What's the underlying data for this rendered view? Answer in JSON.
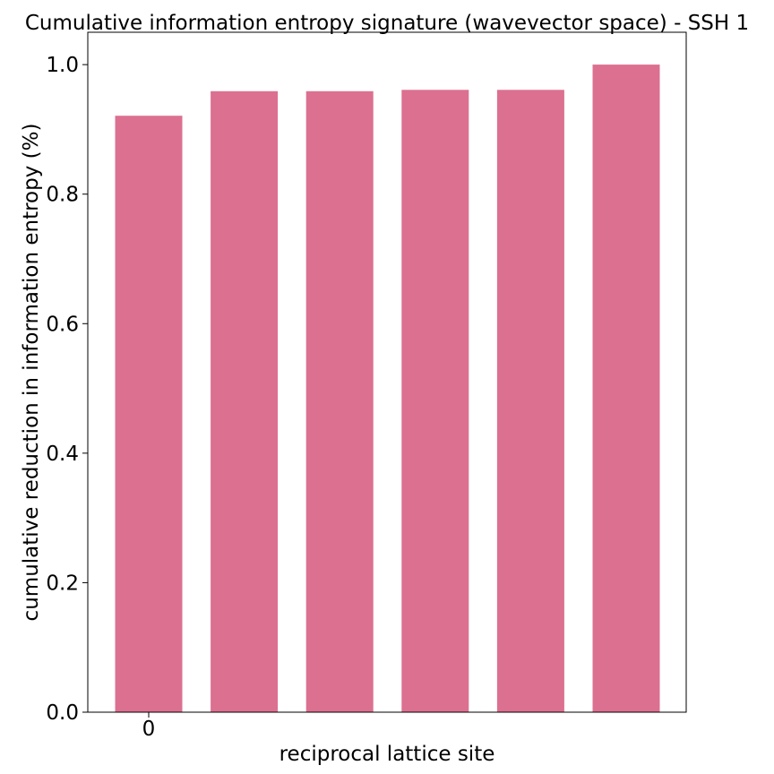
{
  "chart_data": {
    "type": "bar",
    "title": "Cumulative information entropy signature (wavevector space) - SSH 1",
    "xlabel": "reciprocal lattice site",
    "ylabel": "cumulative reduction in information entropy (%)",
    "categories": [
      "0",
      "",
      "",
      "",
      "",
      ""
    ],
    "values": [
      0.921,
      0.959,
      0.959,
      0.961,
      0.961,
      1.0
    ],
    "ylim": [
      0,
      1.05
    ],
    "yticks": [
      "0.0",
      "0.2",
      "0.4",
      "0.6",
      "0.8",
      "1.0"
    ],
    "xticks": [
      "0"
    ],
    "grid": false,
    "colors": {
      "bar": "#dc7090",
      "axis": "#000000"
    }
  }
}
